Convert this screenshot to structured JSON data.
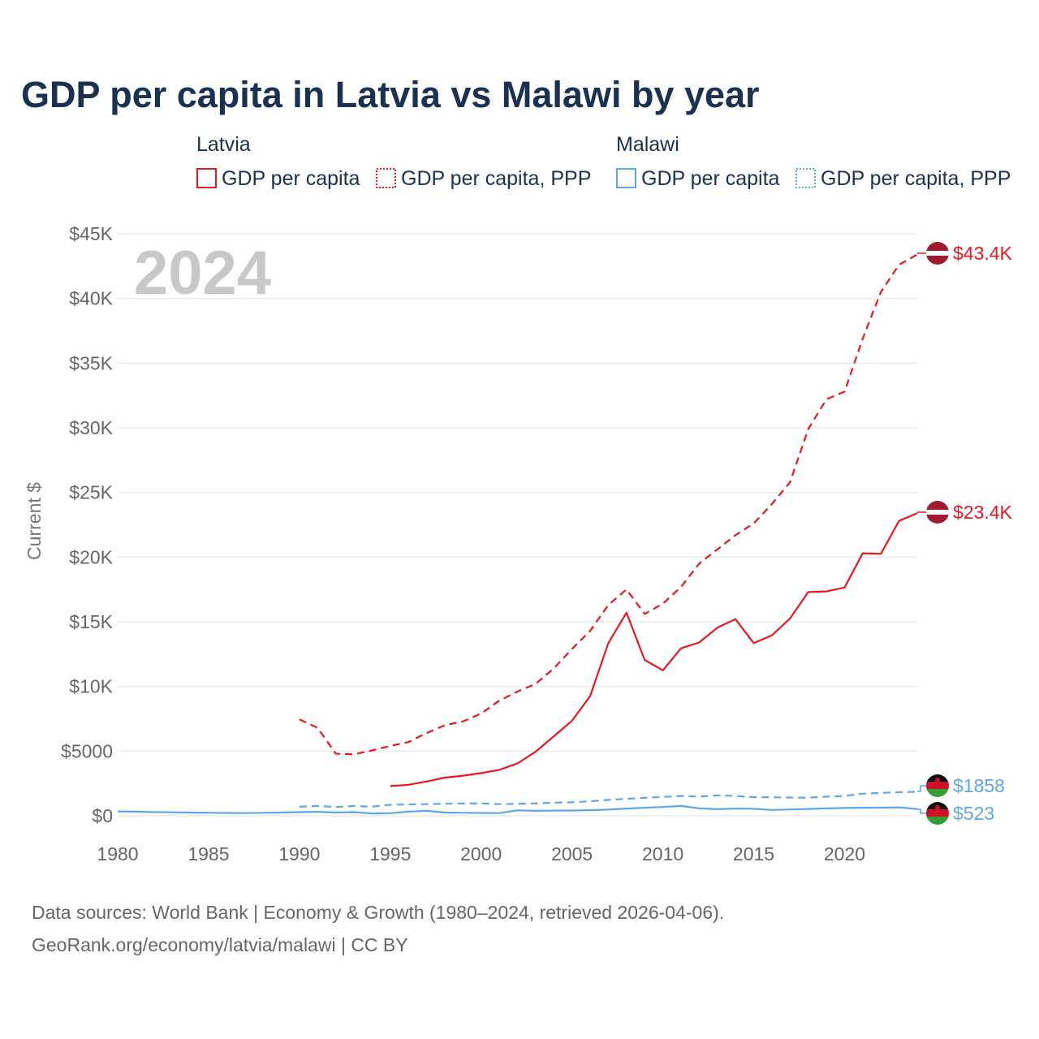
{
  "colors": {
    "latvia": "#e8181e",
    "malawi": "#5fa6e6",
    "title": "#1a3152",
    "grid": "#e6e6e6",
    "tick": "#666666",
    "overlay": "#c8c8c8"
  },
  "chart_data": {
    "type": "line",
    "title": "GDP per capita in Latvia vs Malawi by year",
    "ylabel": "Current $",
    "xlabel": "",
    "xlim": [
      1980,
      2024
    ],
    "ylim": [
      0,
      45000
    ],
    "year_overlay": "2024",
    "x_ticks": [
      1980,
      1985,
      1990,
      1995,
      2000,
      2005,
      2010,
      2015,
      2020
    ],
    "x_tick_labels": [
      "1980",
      "1985",
      "1990",
      "1995",
      "2000",
      "2005",
      "2010",
      "2015",
      "2020"
    ],
    "y_ticks": [
      0,
      5000,
      10000,
      15000,
      20000,
      25000,
      30000,
      35000,
      40000,
      45000
    ],
    "y_tick_labels": [
      "$0",
      "$5000",
      "$10K",
      "$15K",
      "$20K",
      "$25K",
      "$30K",
      "$35K",
      "$40K",
      "$45K"
    ],
    "legend": {
      "groups": [
        {
          "name": "Latvia",
          "entries": [
            {
              "label": "GDP per capita",
              "style": "solid"
            },
            {
              "label": "GDP per capita, PPP",
              "style": "dotted"
            }
          ]
        },
        {
          "name": "Malawi",
          "entries": [
            {
              "label": "GDP per capita",
              "style": "solid"
            },
            {
              "label": "GDP per capita, PPP",
              "style": "dotted"
            }
          ]
        }
      ]
    },
    "series": [
      {
        "name": "Latvia GDP per capita, PPP",
        "country": "latvia",
        "dashed": true,
        "x": [
          1990,
          1991,
          1992,
          1993,
          1994,
          1995,
          1996,
          1997,
          1998,
          1999,
          2000,
          2001,
          2002,
          2003,
          2004,
          2005,
          2006,
          2007,
          2008,
          2009,
          2010,
          2011,
          2012,
          2013,
          2014,
          2015,
          2016,
          2017,
          2018,
          2019,
          2020,
          2021,
          2022,
          2023,
          2024
        ],
        "values": [
          7450,
          6800,
          4800,
          4750,
          5050,
          5400,
          5700,
          6400,
          7000,
          7300,
          7900,
          8900,
          9600,
          10200,
          11400,
          12900,
          14300,
          16300,
          17500,
          15600,
          16400,
          17700,
          19500,
          20600,
          21700,
          22600,
          24100,
          25800,
          29900,
          32200,
          32800,
          36900,
          40500,
          42600,
          43400
        ],
        "end_label": "$43.4K"
      },
      {
        "name": "Latvia GDP per capita",
        "country": "latvia",
        "dashed": false,
        "x": [
          1995,
          1996,
          1997,
          1998,
          1999,
          2000,
          2001,
          2002,
          2003,
          2004,
          2005,
          2006,
          2007,
          2008,
          2009,
          2010,
          2011,
          2012,
          2013,
          2014,
          2015,
          2016,
          2017,
          2018,
          2019,
          2020,
          2021,
          2022,
          2023,
          2024
        ],
        "values": [
          2300,
          2400,
          2650,
          2950,
          3100,
          3300,
          3550,
          4050,
          4950,
          6150,
          7350,
          9250,
          13350,
          15700,
          12050,
          11250,
          12950,
          13400,
          14550,
          15200,
          13350,
          13950,
          15250,
          17300,
          17350,
          17650,
          20300,
          20250,
          22800,
          23400
        ],
        "end_label": "$23.4K"
      },
      {
        "name": "Malawi GDP per capita, PPP",
        "country": "malawi",
        "dashed": true,
        "x": [
          1990,
          1991,
          1992,
          1993,
          1994,
          1995,
          1996,
          1997,
          1998,
          1999,
          2000,
          2001,
          2002,
          2003,
          2004,
          2005,
          2006,
          2007,
          2008,
          2009,
          2010,
          2011,
          2012,
          2013,
          2014,
          2015,
          2016,
          2017,
          2018,
          2019,
          2020,
          2021,
          2022,
          2023,
          2024
        ],
        "values": [
          700,
          750,
          680,
          750,
          700,
          850,
          880,
          900,
          930,
          950,
          960,
          900,
          920,
          960,
          1010,
          1050,
          1120,
          1230,
          1310,
          1390,
          1460,
          1530,
          1480,
          1580,
          1530,
          1440,
          1430,
          1410,
          1400,
          1480,
          1530,
          1710,
          1770,
          1820,
          1858
        ],
        "end_label": "$1858"
      },
      {
        "name": "Malawi GDP per capita",
        "country": "malawi",
        "dashed": false,
        "x": [
          1980,
          1981,
          1982,
          1983,
          1984,
          1985,
          1986,
          1987,
          1988,
          1989,
          1990,
          1991,
          1992,
          1993,
          1994,
          1995,
          1996,
          1997,
          1998,
          1999,
          2000,
          2001,
          2002,
          2003,
          2004,
          2005,
          2006,
          2007,
          2008,
          2009,
          2010,
          2011,
          2012,
          2013,
          2014,
          2015,
          2016,
          2017,
          2018,
          2019,
          2020,
          2021,
          2022,
          2023,
          2024
        ],
        "values": [
          340,
          320,
          280,
          270,
          250,
          230,
          220,
          210,
          230,
          250,
          280,
          310,
          250,
          280,
          180,
          200,
          320,
          380,
          250,
          230,
          220,
          210,
          420,
          380,
          400,
          410,
          430,
          480,
          560,
          620,
          680,
          760,
          570,
          510,
          550,
          540,
          450,
          490,
          530,
          570,
          600,
          620,
          630,
          650,
          523
        ],
        "end_label": "$523"
      }
    ]
  },
  "footer": {
    "line1": "Data sources: World Bank | Economy & Growth (1980–2024, retrieved 2026-04-06).",
    "line2": "GeoRank.org/economy/latvia/malawi | CC BY"
  }
}
